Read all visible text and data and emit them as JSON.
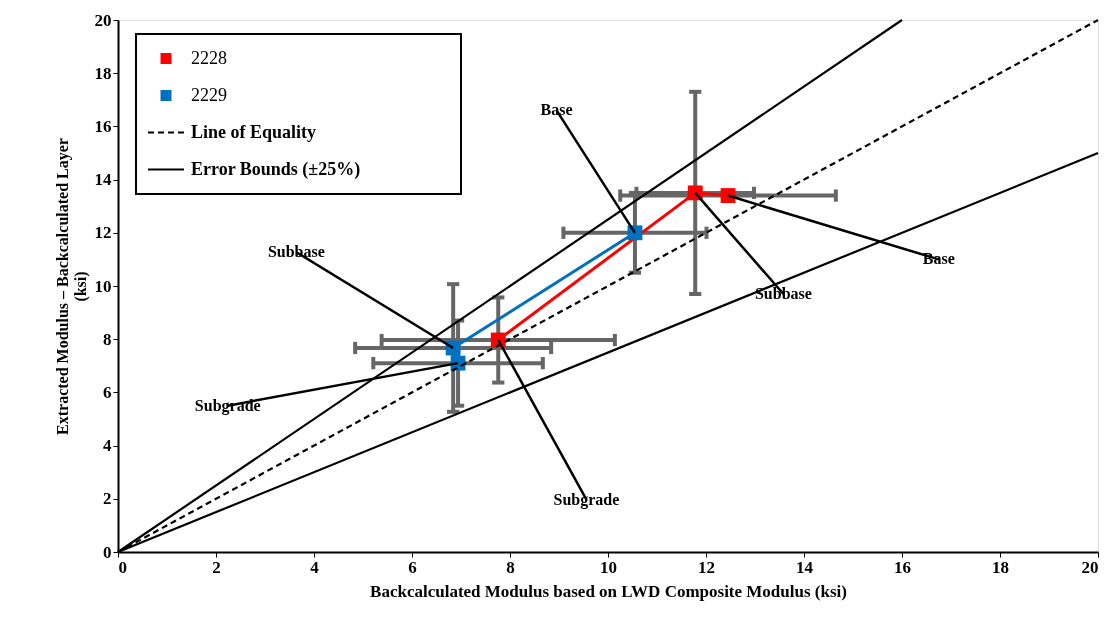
{
  "chart_data": {
    "type": "line",
    "xlabel": "Backcalculated Modulus based on LWD Composite Modulus (ksi)",
    "ylabel": "Extracted Modulus – Backcalculated Layer\n(ksi)",
    "xlim": [
      0,
      20
    ],
    "ylim": [
      0,
      20
    ],
    "xticks": [
      0,
      2,
      4,
      6,
      8,
      10,
      12,
      14,
      16,
      18,
      20
    ],
    "yticks": [
      0,
      2,
      4,
      6,
      8,
      10,
      12,
      14,
      16,
      18,
      20
    ],
    "grid": false,
    "legend": "top left",
    "series": [
      {
        "name": "2228",
        "marker": "square",
        "line_style": "solid",
        "color": "#ff0000",
        "x": [
          7.76,
          11.78,
          12.45
        ],
        "values": [
          7.97,
          13.5,
          13.4
        ],
        "errors": [
          1.6,
          3.8,
          null
        ],
        "xerrors": [
          2.38,
          1.2,
          2.2
        ]
      },
      {
        "name": "2229",
        "marker": "square",
        "line_style": "solid",
        "color": "#0070c0",
        "x": [
          6.94,
          6.84,
          10.55
        ],
        "values": [
          7.1,
          7.67,
          12.0
        ],
        "errors": [
          1.6,
          2.4,
          1.5
        ],
        "xerrors": [
          1.73,
          2.0,
          1.46
        ]
      },
      {
        "name": "Line of Equality",
        "marker": "none",
        "line_style": "dashed",
        "color": "#000000",
        "x": [
          0,
          20
        ],
        "values": [
          0,
          20
        ]
      },
      {
        "name": "Error Bounds (±25%)",
        "marker": "none",
        "line_style": "solid",
        "color": "#000000",
        "x": [
          0,
          16
        ],
        "values": [
          0,
          20
        ]
      },
      {
        "marker": "none",
        "line_style": "solid",
        "color": "#000000",
        "x": [
          0,
          20
        ],
        "values": [
          0,
          15
        ]
      }
    ],
    "annotations": [
      {
        "text": "Base",
        "x": 10.55,
        "y": 12.0
      },
      {
        "text": "Subbase",
        "x": 6.84,
        "y": 7.67
      },
      {
        "text": "Subgrade",
        "x": 6.94,
        "y": 7.1
      },
      {
        "text": "Subgrade",
        "x": 7.76,
        "y": 7.97
      },
      {
        "text": "Subbase",
        "x": 11.78,
        "y": 13.5
      },
      {
        "text": "Base",
        "x": 12.45,
        "y": 13.4
      }
    ]
  }
}
